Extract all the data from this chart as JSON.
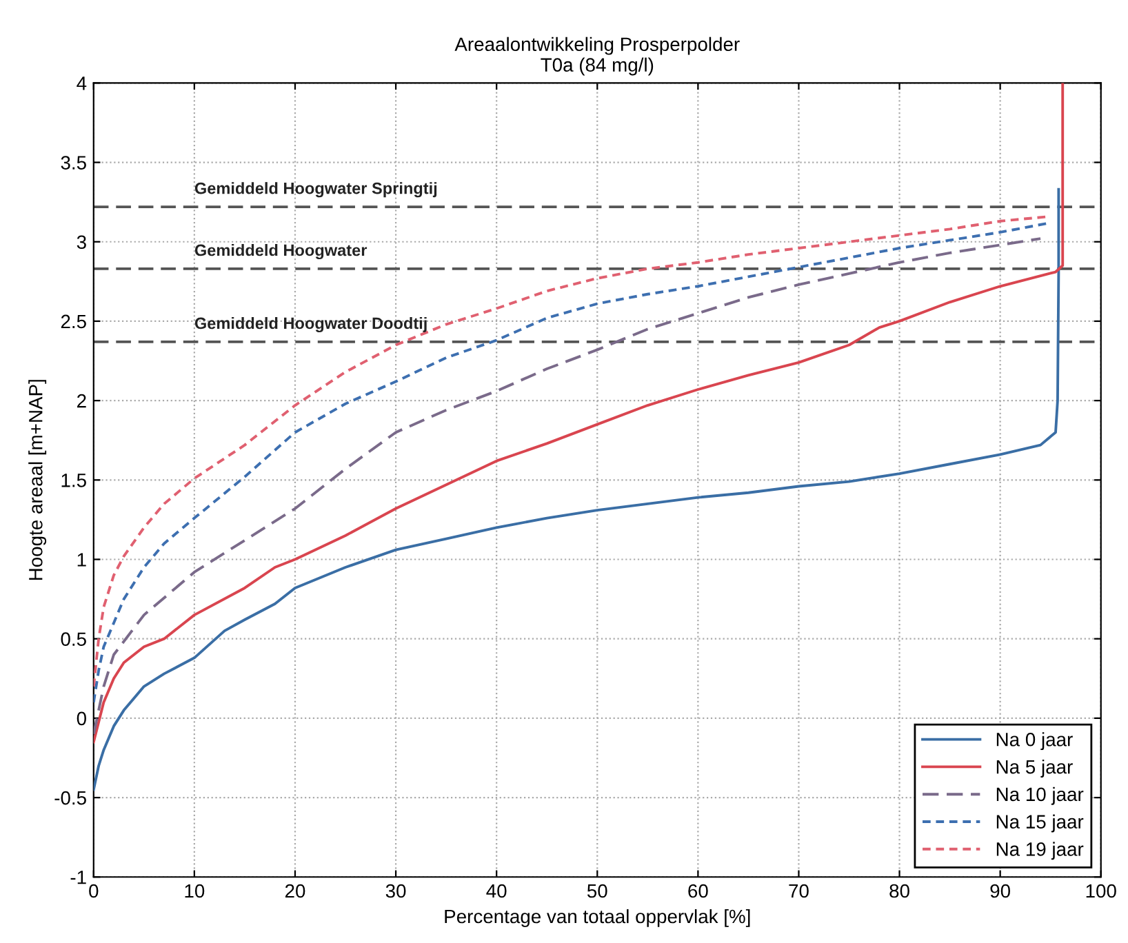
{
  "chart_data": {
    "type": "line",
    "title": "Areaalontwikkeling Prosperpolder",
    "subtitle": "T0a (84 mg/l)",
    "xlabel": "Percentage van totaal oppervlak [%]",
    "ylabel": "Hoogte areaal [m+NAP]",
    "xlim": [
      0,
      100
    ],
    "xticks": [
      0,
      10,
      20,
      30,
      40,
      50,
      60,
      70,
      80,
      90,
      100
    ],
    "ylim": [
      -1,
      4
    ],
    "yticks": [
      -1,
      -0.5,
      0,
      0.5,
      1,
      1.5,
      2,
      2.5,
      3,
      3.5,
      4
    ],
    "grid": true,
    "legend": "bottom right",
    "series": [
      {
        "name": "Na 0 jaar",
        "color": "#3a6ea5",
        "line_style": "solid",
        "x": [
          0,
          0.5,
          1,
          2,
          3,
          5,
          7,
          10,
          13,
          15,
          18,
          20,
          25,
          30,
          35,
          40,
          45,
          50,
          55,
          60,
          65,
          70,
          75,
          80,
          85,
          90,
          94,
          95.5,
          95.7,
          95.8,
          95.8
        ],
        "values": [
          -0.45,
          -0.3,
          -0.2,
          -0.05,
          0.05,
          0.2,
          0.28,
          0.38,
          0.55,
          0.62,
          0.72,
          0.82,
          0.95,
          1.06,
          1.13,
          1.2,
          1.26,
          1.31,
          1.35,
          1.39,
          1.42,
          1.46,
          1.49,
          1.54,
          1.6,
          1.66,
          1.72,
          1.8,
          2.0,
          2.8,
          3.33
        ]
      },
      {
        "name": "Na 5 jaar",
        "color": "#d9454f",
        "line_style": "solid",
        "x": [
          0,
          1,
          2,
          3,
          5,
          7,
          10,
          15,
          18,
          20,
          25,
          30,
          35,
          40,
          45,
          50,
          55,
          60,
          65,
          70,
          75,
          78,
          80,
          85,
          90,
          95.5,
          96.2,
          96.2
        ],
        "values": [
          -0.15,
          0.1,
          0.25,
          0.35,
          0.45,
          0.5,
          0.65,
          0.82,
          0.95,
          1.0,
          1.15,
          1.32,
          1.47,
          1.62,
          1.73,
          1.85,
          1.97,
          2.07,
          2.16,
          2.24,
          2.35,
          2.46,
          2.5,
          2.62,
          2.72,
          2.81,
          2.85,
          4
        ]
      },
      {
        "name": "Na 10 jaar",
        "color": "#7a6a8a",
        "line_style": "dashed",
        "x": [
          0,
          1,
          2,
          5,
          10,
          15,
          20,
          25,
          30,
          35,
          40,
          45,
          50,
          55,
          60,
          65,
          70,
          75,
          80,
          85,
          90,
          94
        ],
        "values": [
          -0.1,
          0.2,
          0.4,
          0.65,
          0.92,
          1.12,
          1.32,
          1.57,
          1.8,
          1.94,
          2.06,
          2.2,
          2.32,
          2.45,
          2.55,
          2.65,
          2.73,
          2.8,
          2.87,
          2.93,
          2.98,
          3.02
        ]
      },
      {
        "name": "Na 15 jaar",
        "color": "#3d6fb0",
        "line_style": "dotted",
        "x": [
          0,
          0.5,
          1,
          2,
          3,
          5,
          7,
          10,
          15,
          20,
          25,
          30,
          35,
          40,
          45,
          50,
          55,
          60,
          65,
          70,
          75,
          80,
          85,
          90,
          95
        ],
        "values": [
          0.1,
          0.3,
          0.45,
          0.6,
          0.75,
          0.95,
          1.1,
          1.26,
          1.52,
          1.8,
          1.98,
          2.12,
          2.27,
          2.38,
          2.52,
          2.61,
          2.67,
          2.72,
          2.78,
          2.84,
          2.9,
          2.96,
          3.01,
          3.06,
          3.12
        ]
      },
      {
        "name": "Na 19 jaar",
        "color": "#e06070",
        "line_style": "dotted",
        "x": [
          0,
          0.5,
          1,
          2,
          3,
          5,
          7,
          10,
          15,
          20,
          25,
          30,
          35,
          40,
          45,
          50,
          55,
          60,
          65,
          70,
          75,
          80,
          85,
          90,
          95
        ],
        "values": [
          0.2,
          0.5,
          0.7,
          0.9,
          1.02,
          1.2,
          1.35,
          1.51,
          1.72,
          1.97,
          2.18,
          2.35,
          2.48,
          2.58,
          2.69,
          2.77,
          2.83,
          2.87,
          2.92,
          2.96,
          3.0,
          3.04,
          3.08,
          3.13,
          3.16
        ]
      }
    ],
    "ref_lines": [
      {
        "axis": "y",
        "value": 3.22,
        "label": "Gemiddeld Hoogwater Springtij",
        "color": "#555555",
        "line_style": "dashed"
      },
      {
        "axis": "y",
        "value": 2.83,
        "label": "Gemiddeld Hoogwater",
        "color": "#555555",
        "line_style": "dashed"
      },
      {
        "axis": "y",
        "value": 2.37,
        "label": "Gemiddeld Hoogwater Doodtij",
        "color": "#555555",
        "line_style": "dashed"
      }
    ]
  }
}
